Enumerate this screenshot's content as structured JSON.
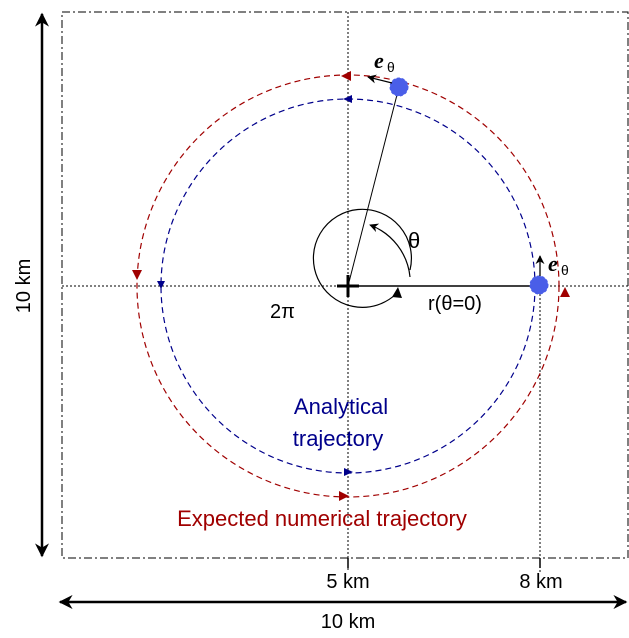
{
  "labels": {
    "width_label": "10 km",
    "height_label": "10 km",
    "tick_5km": "5 km",
    "tick_8km": "8 km",
    "theta": "θ",
    "two_pi": "2π",
    "r_label": "r(θ=0)",
    "e_theta_top": "e",
    "e_theta_top_sub": "θ",
    "e_theta_right": "e",
    "e_theta_right_sub": "θ",
    "analytical_line1": "Analytical",
    "analytical_line2": "trajectory",
    "expected": "Expected numerical trajectory"
  },
  "colors": {
    "analytical": "#00008b",
    "expected": "#a00000",
    "satellite": "#4a5ee8",
    "axis": "#000000"
  }
}
